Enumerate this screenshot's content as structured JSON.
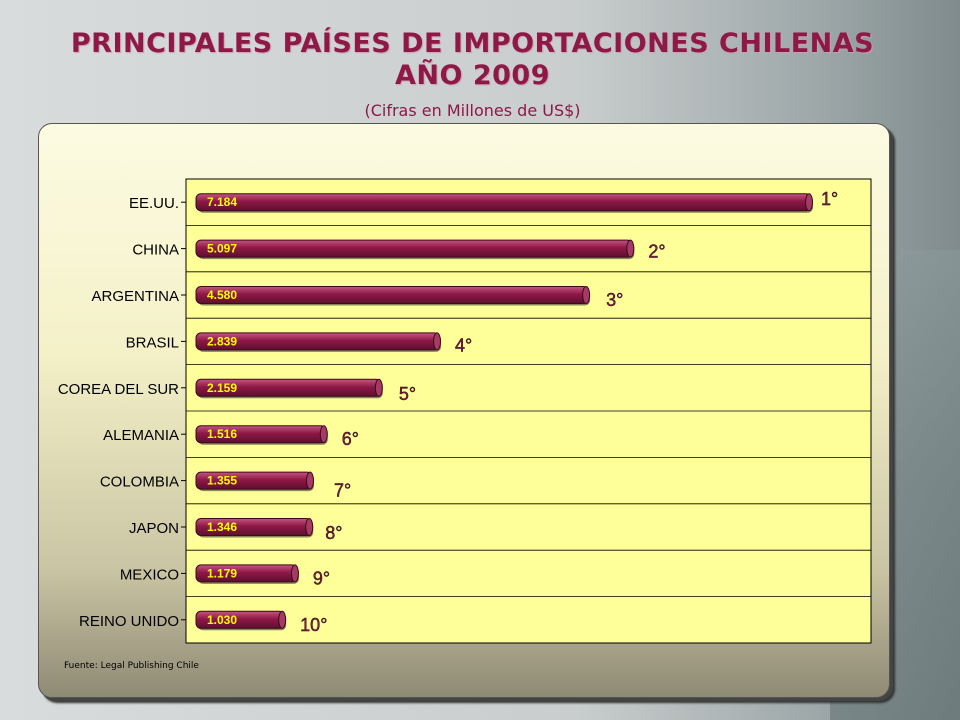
{
  "header": {
    "title_line1": "PRINCIPALES PAÍSES DE IMPORTACIONES CHILENAS",
    "title_line2": "AÑO 2009",
    "subtitle": "(Cifras en Millones de US$)"
  },
  "footer": {
    "source": "Fuente: Legal Publishing Chile"
  },
  "colors": {
    "bar": "#8e1846",
    "plot_bg": "#ffff99",
    "value_label": "#ffff00",
    "rank_label": "#8e1846"
  },
  "chart_data": {
    "type": "bar",
    "orientation": "horizontal",
    "categories": [
      "EE.UU.",
      "CHINA",
      "ARGENTINA",
      "BRASIL",
      "COREA DEL SUR",
      "ALEMANIA",
      "COLOMBIA",
      "JAPON",
      "MEXICO",
      "REINO UNIDO"
    ],
    "values": [
      7184,
      5097,
      4580,
      2839,
      2159,
      1516,
      1355,
      1346,
      1179,
      1030
    ],
    "value_labels": [
      "7.184",
      "5.097",
      "4.580",
      "2.839",
      "2.159",
      "1.516",
      "1.355",
      "1.346",
      "1.179",
      "1.030"
    ],
    "rank_labels": [
      "1°",
      "2°",
      "3°",
      "4°",
      "5°",
      "6°",
      "7°",
      "8°",
      "9°",
      "10°"
    ],
    "xlim": [
      0,
      8000
    ],
    "grid": true
  }
}
